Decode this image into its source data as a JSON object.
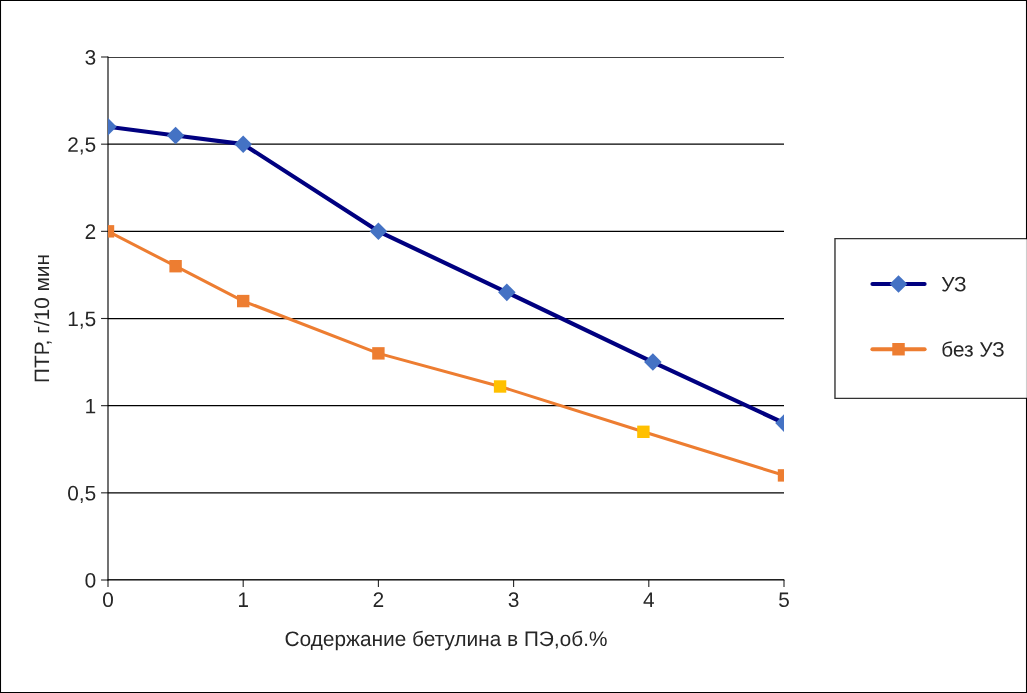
{
  "chart_data": {
    "type": "line",
    "xlabel": "Содержание бетулина в ПЭ,об.%",
    "ylabel": "ПТР, г/10 мин",
    "xlim": [
      0,
      5
    ],
    "xticks": [
      0,
      1,
      2,
      3,
      4,
      5
    ],
    "ylim": [
      0,
      3
    ],
    "yticks": [
      0,
      {
        "value": 0.5,
        "label": "0,5"
      },
      1,
      {
        "value": 1.5,
        "label": "1,5"
      },
      2,
      {
        "value": 2.5,
        "label": "2,5"
      },
      3
    ],
    "grid": "y",
    "legend": "right",
    "line_style": "solid",
    "series": [
      {
        "name": "УЗ",
        "color": "#000080",
        "marker": "diamond",
        "x": [
          0,
          0.5,
          1,
          2,
          2.95,
          4.03,
          5
        ],
        "values": [
          2.6,
          2.55,
          2.5,
          2.0,
          1.65,
          1.25,
          0.9
        ],
        "colors": [
          "#4472c4",
          "#4472c4",
          "#4472c4",
          "#4472c4",
          "#4472c4",
          "#4472c4",
          "#4472c4"
        ]
      },
      {
        "name": "без УЗ",
        "color": "#ed7d31",
        "marker": "square",
        "x": [
          0,
          0.5,
          1,
          2,
          2.9,
          3.96,
          5
        ],
        "values": [
          2.0,
          1.8,
          1.6,
          1.3,
          1.11,
          0.85,
          0.6
        ],
        "colors": [
          "#ed7d31",
          "#ed7d31",
          "#ed7d31",
          "#ed7d31",
          "#ffc000",
          "#ffc000",
          "#ed7d31"
        ]
      }
    ]
  }
}
